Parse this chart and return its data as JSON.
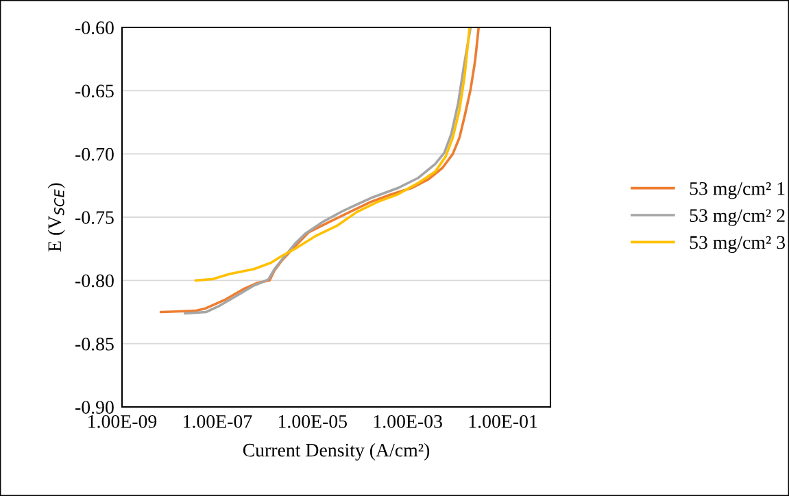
{
  "chart_data": {
    "type": "line",
    "xlabel": "Current Density (A/cm²)",
    "ylabel": "E (V$_{SCE}$)",
    "log": "x",
    "grid": "y",
    "legend": "right",
    "marker": "none",
    "line_style": "solid",
    "xlim": [
      1e-09,
      1
    ],
    "xticks": [
      {
        "value": 1e-09,
        "label": "1.00E-09"
      },
      {
        "value": 1e-07,
        "label": "1.00E-07"
      },
      {
        "value": 1e-05,
        "label": "1.00E-05"
      },
      {
        "value": 0.001,
        "label": "1.00E-03"
      },
      {
        "value": 0.1,
        "label": "1.00E-01"
      }
    ],
    "ylim": [
      -0.9,
      -0.6
    ],
    "yticks": [
      {
        "value": -0.9,
        "label": "-0.90"
      },
      {
        "value": -0.85,
        "label": "-0.85"
      },
      {
        "value": -0.8,
        "label": "-0.80"
      },
      {
        "value": -0.75,
        "label": "-0.75"
      },
      {
        "value": -0.7,
        "label": "-0.70"
      },
      {
        "value": -0.65,
        "label": "-0.65"
      },
      {
        "value": -0.6,
        "label": "-0.60"
      }
    ],
    "series": [
      {
        "name": "53 mg/cm² 1",
        "color": "#ed7d31",
        "x": [
          6.5e-09,
          3.5e-08,
          5.8e-08,
          1.5e-07,
          3.5e-07,
          6.9e-07,
          1.26e-06,
          1.6e-06,
          2.2e-06,
          4.3e-06,
          8.3e-06,
          2.2e-05,
          6e-05,
          0.000166,
          0.00045,
          0.0012,
          0.00275,
          0.0054,
          0.0089,
          0.0123,
          0.0158,
          0.021,
          0.026,
          0.028,
          0.031
        ],
        "values": [
          -0.825,
          -0.824,
          -0.822,
          -0.815,
          -0.807,
          -0.802,
          -0.8,
          -0.792,
          -0.785,
          -0.773,
          -0.762,
          -0.754,
          -0.746,
          -0.738,
          -0.732,
          -0.727,
          -0.72,
          -0.711,
          -0.7,
          -0.687,
          -0.67,
          -0.649,
          -0.627,
          -0.616,
          -0.6
        ]
      },
      {
        "name": "53 mg/cm² 2",
        "color": "#a5a5a5",
        "x": [
          2.1e-08,
          5.8e-08,
          1.12e-07,
          2.6e-07,
          5.9e-07,
          9.5e-07,
          1.2e-06,
          1.6e-06,
          2.6e-06,
          4.3e-06,
          7.1e-06,
          1.6e-05,
          4.4e-05,
          0.000166,
          0.00062,
          0.00166,
          0.0038,
          0.0059,
          0.0083,
          0.0115,
          0.015,
          0.021
        ],
        "values": [
          -0.826,
          -0.825,
          -0.82,
          -0.812,
          -0.804,
          -0.801,
          -0.799,
          -0.791,
          -0.781,
          -0.771,
          -0.763,
          -0.754,
          -0.745,
          -0.735,
          -0.727,
          -0.719,
          -0.708,
          -0.699,
          -0.684,
          -0.66,
          -0.632,
          -0.6
        ]
      },
      {
        "name": "53 mg/cm² 3",
        "color": "#ffc000",
        "x": [
          3.5e-08,
          7.9e-08,
          1.8e-07,
          5.9e-07,
          1.35e-06,
          2.2e-06,
          4.3e-06,
          1.15e-05,
          3.2e-05,
          8.5e-05,
          0.00023,
          0.00062,
          0.00166,
          0.0038,
          0.0063,
          0.0089,
          0.0123,
          0.0158,
          0.02
        ],
        "values": [
          -0.8,
          -0.799,
          -0.795,
          -0.791,
          -0.786,
          -0.781,
          -0.775,
          -0.765,
          -0.757,
          -0.746,
          -0.738,
          -0.732,
          -0.723,
          -0.714,
          -0.702,
          -0.687,
          -0.665,
          -0.638,
          -0.6
        ]
      }
    ]
  }
}
